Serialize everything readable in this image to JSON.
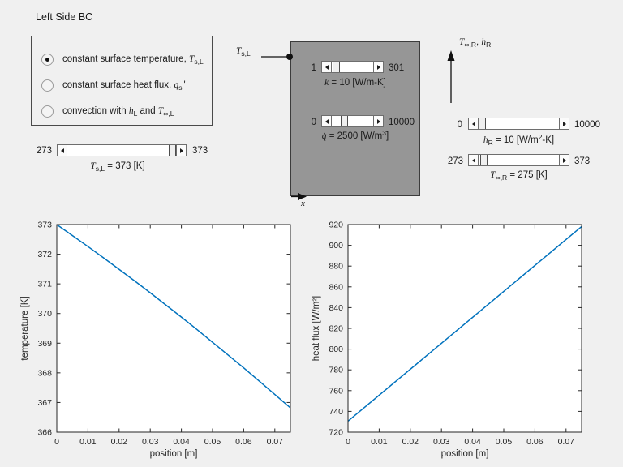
{
  "bc_panel": {
    "title": "Left Side BC",
    "options": [
      {
        "selected": true,
        "text1": "constant surface temperature, ",
        "sym1": "T",
        "sub1": "s,L",
        "text2": "",
        "sym2": "",
        "sub2": "",
        "suffix": ""
      },
      {
        "selected": false,
        "text1": "constant surface heat flux, ",
        "sym1": "q",
        "sub1": "s",
        "text2": "",
        "sym2": "",
        "sub2": "",
        "suffix": "\""
      },
      {
        "selected": false,
        "text1": "convection with ",
        "sym1": "h",
        "sub1": "L",
        "text2": " and ",
        "sym2": "T",
        "sub2": "∞,L",
        "suffix": ""
      }
    ]
  },
  "ts_slider": {
    "min": "273",
    "max": "373",
    "fraction": 1,
    "label": {
      "sym": "T",
      "sub": "s,L",
      "rest": " = 373 [K]",
      "sup": "",
      "rest2": ""
    }
  },
  "wall": {
    "ts_label": {
      "sym": "T",
      "sub": "s,L"
    },
    "x_label": "x",
    "k_slider": {
      "min": "1",
      "max": "301",
      "fraction": 0.03,
      "label": {
        "sym": "k",
        "sub": "",
        "rest": " = 10 [W/m-K]",
        "sup": "",
        "rest2": ""
      }
    },
    "q_slider": {
      "min": "0",
      "max": "10000",
      "fraction": 0.25,
      "label": {
        "sym": "q̇",
        "sub": "",
        "rest": " = 2500 [W/m",
        "sup": "3",
        "rest2": "]"
      }
    }
  },
  "right_controls": {
    "arrow_label": {
      "sym1": "T",
      "sub1": "∞,R",
      "mid": ", ",
      "sym2": "h",
      "sub2": "R"
    },
    "h_slider": {
      "min": "0",
      "max": "10000",
      "fraction": 0.001,
      "label": {
        "sym": "h",
        "sub": "R",
        "rest": " = 10 [W/m",
        "sup": "2",
        "rest2": "-K]"
      }
    },
    "tinf_slider": {
      "min": "273",
      "max": "373",
      "fraction": 0.02,
      "label": {
        "sym": "T",
        "sub": "∞,R",
        "rest": " = 275 [K]",
        "sup": "",
        "rest2": ""
      }
    }
  },
  "chart_data": [
    {
      "name": "temperature-plot",
      "type": "line",
      "title": "",
      "xlabel": "position [m]",
      "ylabel": "temperature [K]",
      "xlim": [
        0,
        0.075
      ],
      "ylim": [
        366,
        373
      ],
      "xticks": [
        0,
        0.01,
        0.02,
        0.03,
        0.04,
        0.05,
        0.06,
        0.07
      ],
      "xtick_labels": [
        "0",
        "0.01",
        "0.02",
        "0.03",
        "0.04",
        "0.05",
        "0.06",
        "0.07"
      ],
      "yticks": [
        366,
        367,
        368,
        369,
        370,
        371,
        372,
        373
      ],
      "ytick_labels": [
        "366",
        "367",
        "368",
        "369",
        "370",
        "371",
        "372",
        "373"
      ],
      "grid": false,
      "legend": false,
      "line_color": "#0072BD",
      "series": [
        {
          "name": "temperature-line",
          "x": [
            0,
            0.005,
            0.01,
            0.015,
            0.02,
            0.025,
            0.03,
            0.035,
            0.04,
            0.045,
            0.05,
            0.055,
            0.06,
            0.065,
            0.07,
            0.075
          ],
          "y": [
            373,
            372.63,
            372.26,
            371.88,
            371.49,
            371.1,
            370.7,
            370.29,
            369.88,
            369.46,
            369.03,
            368.6,
            368.17,
            367.72,
            367.27,
            366.82
          ]
        }
      ]
    },
    {
      "name": "heat-flux-plot",
      "type": "line",
      "title": "",
      "xlabel": "position [m]",
      "ylabel": "heat flux [W/m²]",
      "xlim": [
        0,
        0.075
      ],
      "ylim": [
        720,
        920
      ],
      "xticks": [
        0,
        0.01,
        0.02,
        0.03,
        0.04,
        0.05,
        0.06,
        0.07
      ],
      "xtick_labels": [
        "0",
        "0.01",
        "0.02",
        "0.03",
        "0.04",
        "0.05",
        "0.06",
        "0.07"
      ],
      "yticks": [
        720,
        740,
        760,
        780,
        800,
        820,
        840,
        860,
        880,
        900,
        920
      ],
      "ytick_labels": [
        "720",
        "740",
        "760",
        "780",
        "800",
        "820",
        "840",
        "860",
        "880",
        "900",
        "920"
      ],
      "grid": false,
      "legend": false,
      "line_color": "#0072BD",
      "series": [
        {
          "name": "heat-flux-line",
          "x": [
            0,
            0.025,
            0.05,
            0.075
          ],
          "y": [
            730.6,
            793.1,
            855.6,
            918.1
          ]
        }
      ]
    }
  ]
}
